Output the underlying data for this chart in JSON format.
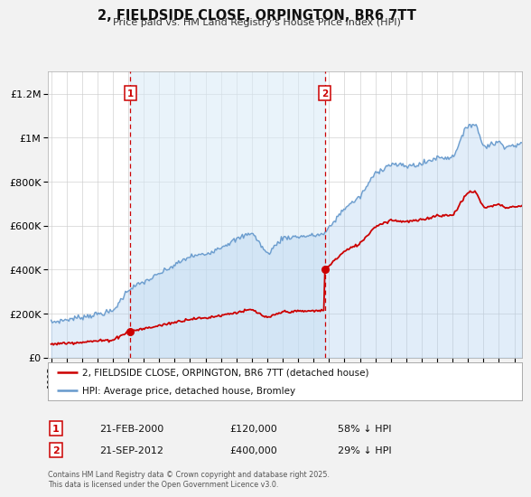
{
  "title": "2, FIELDSIDE CLOSE, ORPINGTON, BR6 7TT",
  "subtitle": "Price paid vs. HM Land Registry's House Price Index (HPI)",
  "legend_line1": "2, FIELDSIDE CLOSE, ORPINGTON, BR6 7TT (detached house)",
  "legend_line2": "HPI: Average price, detached house, Bromley",
  "footer": "Contains HM Land Registry data © Crown copyright and database right 2025.\nThis data is licensed under the Open Government Licence v3.0.",
  "sale1_date": "21-FEB-2000",
  "sale1_price": "£120,000",
  "sale1_hpi": "58% ↓ HPI",
  "sale1_year": 2000.12,
  "sale1_value": 120000,
  "sale2_date": "21-SEP-2012",
  "sale2_price": "£400,000",
  "sale2_hpi": "29% ↓ HPI",
  "sale2_year": 2012.72,
  "sale2_value": 400000,
  "line_color_price": "#cc0000",
  "line_color_hpi": "#6699cc",
  "vline_color": "#cc0000",
  "background_color": "#f2f2f2",
  "plot_bg_color": "#ffffff",
  "grid_color": "#cccccc",
  "ylim": [
    0,
    1300000
  ],
  "xlim_start": 1994.8,
  "xlim_end": 2025.5,
  "yticks": [
    0,
    200000,
    400000,
    600000,
    800000,
    1000000,
    1200000
  ],
  "ytick_labels": [
    "£0",
    "£200K",
    "£400K",
    "£600K",
    "£800K",
    "£1M",
    "£1.2M"
  ],
  "xticks": [
    1995,
    1996,
    1997,
    1998,
    1999,
    2000,
    2001,
    2002,
    2003,
    2004,
    2005,
    2006,
    2007,
    2008,
    2009,
    2010,
    2011,
    2012,
    2013,
    2014,
    2015,
    2016,
    2017,
    2018,
    2019,
    2020,
    2021,
    2022,
    2023,
    2024,
    2025
  ]
}
